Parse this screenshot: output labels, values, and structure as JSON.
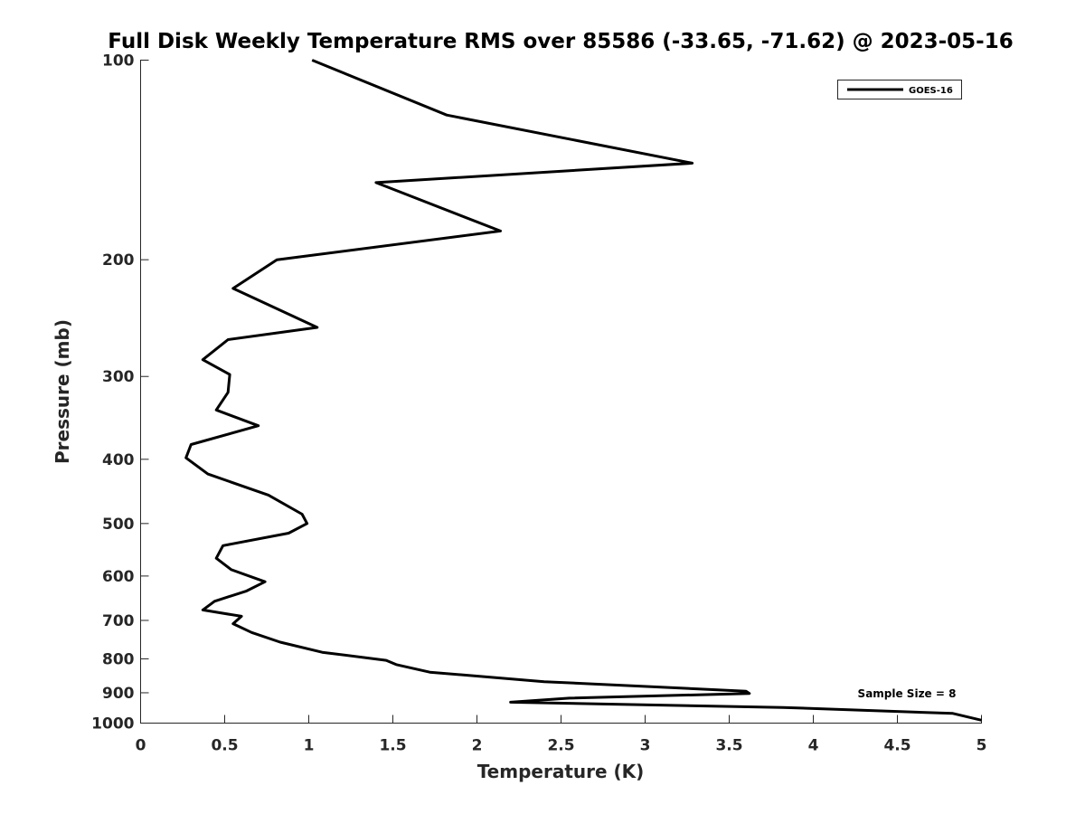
{
  "chart_data": {
    "type": "line",
    "title": "Full Disk Weekly Temperature RMS over 85586 (-33.65, -71.62) @ 2023-05-16",
    "xlabel": "Temperature (K)",
    "ylabel": "Pressure (mb)",
    "xlim": [
      0,
      5
    ],
    "ylim": [
      100,
      1000
    ],
    "y_scale": "log",
    "y_reversed": true,
    "xticks": [
      0,
      0.5,
      1,
      1.5,
      2,
      2.5,
      3,
      3.5,
      4,
      4.5,
      5
    ],
    "xtick_labels": [
      "0",
      "0.5",
      "1",
      "1.5",
      "2",
      "2.5",
      "3",
      "3.5",
      "4",
      "4.5",
      "5"
    ],
    "yticks": [
      100,
      200,
      300,
      400,
      500,
      600,
      700,
      800,
      900,
      1000
    ],
    "ytick_labels": [
      "100",
      "200",
      "300",
      "400",
      "500",
      "600",
      "700",
      "800",
      "900",
      "1000"
    ],
    "grid": false,
    "legend_position": "top-right",
    "series": [
      {
        "name": "GOES-16",
        "color": "#000000",
        "x": [
          1.02,
          1.82,
          3.28,
          1.4,
          2.14,
          0.81,
          0.55,
          1.05,
          0.52,
          0.37,
          0.53,
          0.52,
          0.45,
          0.7,
          0.3,
          0.27,
          0.4,
          0.76,
          0.96,
          0.99,
          0.88,
          0.49,
          0.45,
          0.54,
          0.74,
          0.63,
          0.44,
          0.37,
          0.6,
          0.55,
          0.66,
          0.83,
          1.08,
          1.46,
          1.52,
          1.72,
          2.4,
          3.6,
          3.62,
          2.55,
          2.2,
          3.82,
          4.83,
          5.0
        ],
        "y": [
          100,
          121,
          143,
          153,
          181,
          200,
          221,
          253,
          264,
          283,
          298,
          317,
          337,
          356,
          380,
          398,
          421,
          453,
          484,
          500,
          517,
          540,
          564,
          587,
          612,
          632,
          655,
          675,
          690,
          708,
          730,
          755,
          782,
          804,
          816,
          838,
          866,
          895,
          902,
          917,
          930,
          947,
          967,
          990
        ]
      }
    ],
    "annotations": [
      "Sample Size = 8"
    ]
  }
}
